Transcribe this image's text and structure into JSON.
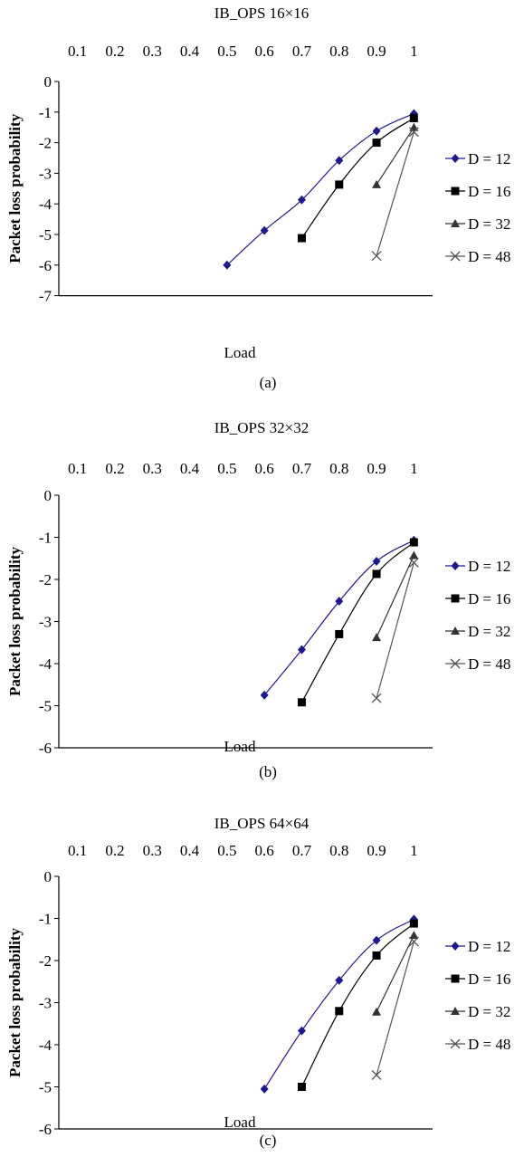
{
  "colors": {
    "d12": "#1f1a8c",
    "d16": "#000000",
    "d32": "#333333",
    "d48": "#555555",
    "axis": "#000000"
  },
  "chart_data": [
    {
      "type": "line",
      "title": "IB_OPS 16×16",
      "xlabel": "Load",
      "ylabel": "Packet loss probability",
      "caption": "(a)",
      "x_ticks": [
        "0.1",
        "0.2",
        "0.3",
        "0.4",
        "0.5",
        "0.6",
        "0.7",
        "0.8",
        "0.9",
        "1"
      ],
      "y_ticks": [
        "0",
        "-1",
        "-2",
        "-3",
        "-4",
        "-5",
        "-6",
        "-7"
      ],
      "ylim": [
        -7,
        0
      ],
      "xlim": [
        0.05,
        1.05
      ],
      "legend_position": "right",
      "series": [
        {
          "name": "D = 12",
          "marker": "diamond",
          "x": [
            0.5,
            0.6,
            0.7,
            0.8,
            0.9,
            1.0
          ],
          "y": [
            -6.0,
            -4.87,
            -3.87,
            -2.58,
            -1.62,
            -1.05
          ]
        },
        {
          "name": "D = 16",
          "marker": "square",
          "x": [
            0.7,
            0.8,
            0.9,
            1.0
          ],
          "y": [
            -5.12,
            -3.37,
            -2.0,
            -1.2
          ]
        },
        {
          "name": "D = 32",
          "marker": "triangle",
          "x": [
            0.9,
            1.0
          ],
          "y": [
            -3.37,
            -1.5
          ]
        },
        {
          "name": "D = 48",
          "marker": "x",
          "x": [
            0.9,
            1.0
          ],
          "y": [
            -5.7,
            -1.65
          ]
        }
      ]
    },
    {
      "type": "line",
      "title": "IB_OPS 32×32",
      "xlabel": "Load",
      "ylabel": "Packet loss probability",
      "caption": "(b)",
      "x_ticks": [
        "0.1",
        "0.2",
        "0.3",
        "0.4",
        "0.5",
        "0.6",
        "0.7",
        "0.8",
        "0.9",
        "1"
      ],
      "y_ticks": [
        "0",
        "-1",
        "-2",
        "-3",
        "-4",
        "-5",
        "-6"
      ],
      "ylim": [
        -6,
        0
      ],
      "xlim": [
        0.05,
        1.05
      ],
      "legend_position": "right",
      "series": [
        {
          "name": "D = 12",
          "marker": "diamond",
          "x": [
            0.6,
            0.7,
            0.8,
            0.9,
            1.0
          ],
          "y": [
            -4.75,
            -3.67,
            -2.52,
            -1.57,
            -1.07
          ]
        },
        {
          "name": "D = 16",
          "marker": "square",
          "x": [
            0.7,
            0.8,
            0.9,
            1.0
          ],
          "y": [
            -4.92,
            -3.3,
            -1.87,
            -1.12
          ]
        },
        {
          "name": "D = 32",
          "marker": "triangle",
          "x": [
            0.9,
            1.0
          ],
          "y": [
            -3.38,
            -1.43
          ]
        },
        {
          "name": "D = 48",
          "marker": "x",
          "x": [
            0.9,
            1.0
          ],
          "y": [
            -4.82,
            -1.6
          ]
        }
      ]
    },
    {
      "type": "line",
      "title": "IB_OPS 64×64",
      "xlabel": "Load",
      "ylabel": "Packet loss probability",
      "caption": "(c)",
      "x_ticks": [
        "0.1",
        "0.2",
        "0.3",
        "0.4",
        "0.5",
        "0.6",
        "0.7",
        "0.8",
        "0.9",
        "1"
      ],
      "y_ticks": [
        "0",
        "-1",
        "-2",
        "-3",
        "-4",
        "-5",
        "-6"
      ],
      "ylim": [
        -6,
        0
      ],
      "xlim": [
        0.05,
        1.05
      ],
      "legend_position": "right",
      "series": [
        {
          "name": "D = 12",
          "marker": "diamond",
          "x": [
            0.6,
            0.7,
            0.8,
            0.9,
            1.0
          ],
          "y": [
            -5.05,
            -3.67,
            -2.47,
            -1.52,
            -1.02
          ]
        },
        {
          "name": "D = 16",
          "marker": "square",
          "x": [
            0.7,
            0.8,
            0.9,
            1.0
          ],
          "y": [
            -5.0,
            -3.2,
            -1.88,
            -1.12
          ]
        },
        {
          "name": "D = 32",
          "marker": "triangle",
          "x": [
            0.9,
            1.0
          ],
          "y": [
            -3.22,
            -1.4
          ]
        },
        {
          "name": "D = 48",
          "marker": "x",
          "x": [
            0.9,
            1.0
          ],
          "y": [
            -4.72,
            -1.55
          ]
        }
      ]
    }
  ]
}
